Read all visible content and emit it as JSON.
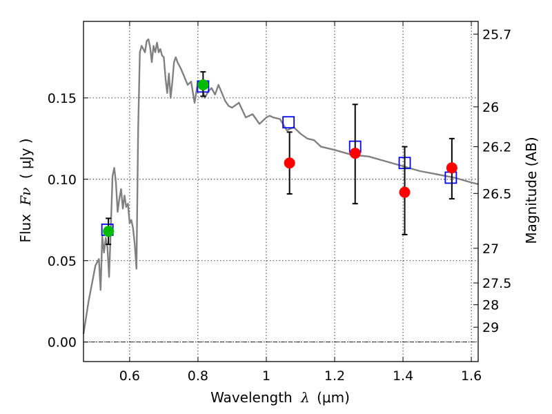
{
  "chart_data": {
    "type": "scatter",
    "xlabel_prefix": "Wavelength",
    "xlabel_symbol": "λ",
    "xlabel_unit": "(μm)",
    "ylabel_prefix": "Flux",
    "ylabel_symbol": "Fν",
    "ylabel_unit": "( μJy )",
    "y2label": "Magnitude (AB)",
    "xlim": [
      0.465,
      1.62
    ],
    "ylim": [
      -0.012,
      0.197
    ],
    "x_ticks": [
      0.6,
      0.8,
      1.0,
      1.2,
      1.4,
      1.6
    ],
    "x_tick_labels": [
      "0.6",
      "0.8",
      "1",
      "1.2",
      "1.4",
      "1.6"
    ],
    "y_ticks": [
      0.0,
      0.05,
      0.1,
      0.15
    ],
    "y_tick_labels": [
      "0.00",
      "0.05",
      "0.10",
      "0.15"
    ],
    "y2_ticks": [
      {
        "flux": 0.1892,
        "label": "25.7"
      },
      {
        "flux": 0.1445,
        "label": "26"
      },
      {
        "flux": 0.12,
        "label": "26.2"
      },
      {
        "flux": 0.0913,
        "label": "26.5"
      },
      {
        "flux": 0.0576,
        "label": "27"
      },
      {
        "flux": 0.0363,
        "label": "27.5"
      },
      {
        "flux": 0.0229,
        "label": "28"
      },
      {
        "flux": 0.0091,
        "label": "29"
      }
    ],
    "grid": true,
    "zero_line": 0.0,
    "colors": {
      "model": "#808080",
      "detected": "#00bb00",
      "measured": "#ff0000",
      "model_band": "#0000ff",
      "errorbar": "#000000"
    },
    "series": [
      {
        "name": "model spectrum",
        "kind": "line",
        "x": [
          0.465,
          0.48,
          0.5,
          0.51,
          0.515,
          0.52,
          0.525,
          0.53,
          0.535,
          0.54,
          0.545,
          0.55,
          0.555,
          0.56,
          0.565,
          0.57,
          0.575,
          0.58,
          0.585,
          0.59,
          0.595,
          0.6,
          0.605,
          0.61,
          0.615,
          0.62,
          0.625,
          0.63,
          0.635,
          0.64,
          0.645,
          0.65,
          0.655,
          0.66,
          0.665,
          0.67,
          0.675,
          0.68,
          0.685,
          0.69,
          0.695,
          0.7,
          0.705,
          0.71,
          0.715,
          0.72,
          0.725,
          0.73,
          0.735,
          0.74,
          0.75,
          0.76,
          0.77,
          0.78,
          0.79,
          0.8,
          0.81,
          0.815,
          0.82,
          0.83,
          0.84,
          0.85,
          0.86,
          0.87,
          0.88,
          0.89,
          0.9,
          0.92,
          0.94,
          0.96,
          0.98,
          1.0,
          1.01,
          1.02,
          1.04,
          1.06,
          1.08,
          1.1,
          1.12,
          1.14,
          1.16,
          1.2,
          1.25,
          1.3,
          1.35,
          1.4,
          1.45,
          1.5,
          1.55,
          1.6,
          1.62
        ],
        "y": [
          0.005,
          0.025,
          0.047,
          0.051,
          0.032,
          0.065,
          0.055,
          0.064,
          0.058,
          0.04,
          0.07,
          0.102,
          0.107,
          0.098,
          0.08,
          0.088,
          0.094,
          0.082,
          0.09,
          0.083,
          0.085,
          0.073,
          0.075,
          0.07,
          0.06,
          0.045,
          0.13,
          0.178,
          0.182,
          0.18,
          0.178,
          0.185,
          0.186,
          0.181,
          0.172,
          0.182,
          0.178,
          0.184,
          0.178,
          0.18,
          0.176,
          0.175,
          0.162,
          0.153,
          0.165,
          0.15,
          0.16,
          0.172,
          0.175,
          0.172,
          0.168,
          0.163,
          0.158,
          0.16,
          0.147,
          0.16,
          0.158,
          0.154,
          0.15,
          0.154,
          0.156,
          0.152,
          0.158,
          0.153,
          0.148,
          0.145,
          0.144,
          0.147,
          0.138,
          0.14,
          0.134,
          0.138,
          0.139,
          0.138,
          0.137,
          0.13,
          0.132,
          0.128,
          0.125,
          0.124,
          0.12,
          0.118,
          0.115,
          0.114,
          0.111,
          0.108,
          0.105,
          0.103,
          0.101,
          0.098,
          0.097
        ]
      },
      {
        "name": "model band fluxes",
        "kind": "square",
        "x": [
          0.535,
          0.815,
          1.065,
          1.26,
          1.405,
          1.54
        ],
        "y": [
          0.069,
          0.157,
          0.135,
          0.12,
          0.11,
          0.101
        ]
      },
      {
        "name": "observed (detected)",
        "kind": "circle",
        "x": [
          0.538,
          0.815
        ],
        "y": [
          0.068,
          0.158
        ],
        "yerr_low": [
          0.06,
          0.151
        ],
        "yerr_high": [
          0.076,
          0.166
        ],
        "fill": "detected"
      },
      {
        "name": "observed",
        "kind": "circle",
        "x": [
          1.068,
          1.26,
          1.405,
          1.543
        ],
        "y": [
          0.11,
          0.116,
          0.092,
          0.107
        ],
        "yerr_low": [
          0.091,
          0.085,
          0.066,
          0.088
        ],
        "yerr_high": [
          0.129,
          0.146,
          0.12,
          0.125
        ],
        "fill": "measured"
      }
    ]
  }
}
